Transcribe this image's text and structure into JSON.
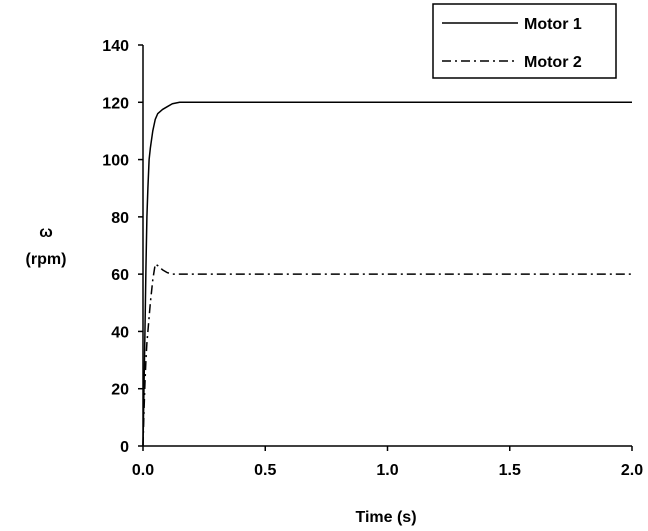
{
  "chart_data": {
    "type": "line",
    "xlabel": "Time (s)",
    "ylabel_symbol": "ω",
    "ylabel_unit": "(rpm)",
    "xlim": [
      0.0,
      2.0
    ],
    "ylim": [
      0,
      140
    ],
    "x_ticks": [
      "0.0",
      "0.5",
      "1.0",
      "1.5",
      "2.0"
    ],
    "y_ticks": [
      "0",
      "20",
      "40",
      "60",
      "80",
      "100",
      "120",
      "140"
    ],
    "grid": false,
    "legend_position": "top-right",
    "series": [
      {
        "name": "Motor 1",
        "style": "solid",
        "color": "#000000",
        "x": [
          0.0,
          0.004,
          0.008,
          0.012,
          0.016,
          0.02,
          0.025,
          0.03,
          0.04,
          0.05,
          0.06,
          0.08,
          0.1,
          0.12,
          0.15,
          0.2,
          0.5,
          1.0,
          1.5,
          2.0
        ],
        "y": [
          0,
          20,
          40,
          62,
          80,
          90,
          100,
          104,
          110,
          114,
          116,
          117.5,
          118.5,
          119.5,
          120,
          120,
          120,
          120,
          120,
          120
        ]
      },
      {
        "name": "Motor 2",
        "style": "dash-dot",
        "color": "#000000",
        "x": [
          0.0,
          0.004,
          0.008,
          0.012,
          0.016,
          0.02,
          0.03,
          0.04,
          0.05,
          0.06,
          0.08,
          0.1,
          0.12,
          0.15,
          0.2,
          0.5,
          1.0,
          1.5,
          2.0
        ],
        "y": [
          0,
          12,
          22,
          30,
          36,
          40,
          50,
          58,
          63.5,
          63,
          61.5,
          60.5,
          60,
          60,
          60,
          60,
          60,
          60,
          60
        ]
      }
    ]
  }
}
